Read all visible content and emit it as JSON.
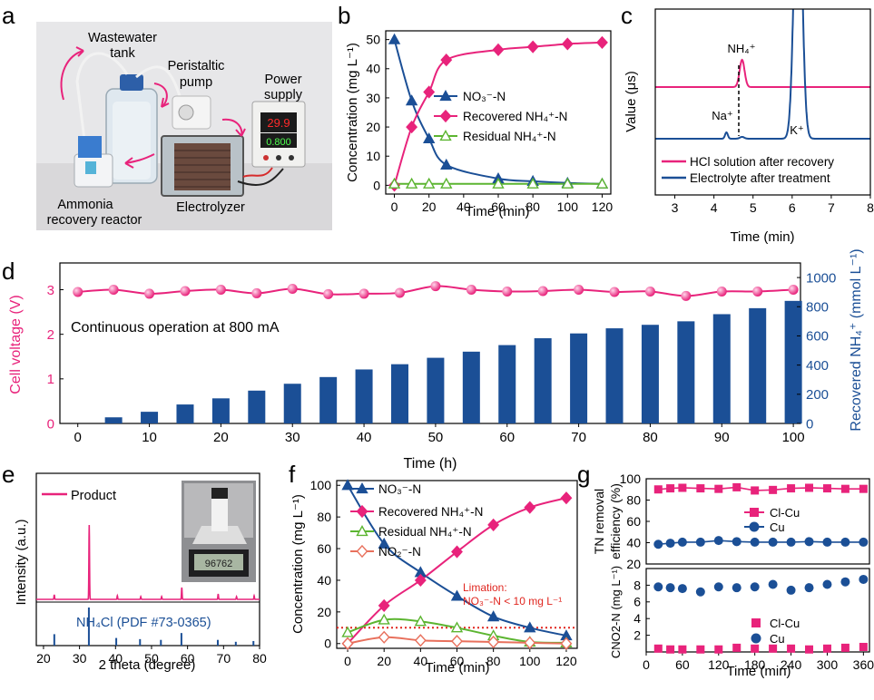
{
  "panel_labels": {
    "a": "a",
    "b": "b",
    "c": "c",
    "d": "d",
    "e": "e",
    "f": "f",
    "g": "g"
  },
  "photo_a": {
    "labels": {
      "tank": [
        "Wastewater",
        "tank"
      ],
      "pump": [
        "Peristaltic",
        "pump"
      ],
      "power": [
        "Power",
        "supply"
      ],
      "reactor": [
        "Ammonia",
        "recovery reactor"
      ],
      "electrolyzer": "Electrolyzer"
    },
    "display_top": "29.9",
    "display_bottom": "0.800"
  },
  "colors": {
    "pink": "#e8237b",
    "blue": "#1b4f96",
    "green": "#5cb531",
    "salmon": "#e8705c",
    "red": "#e0261f"
  },
  "chart_data": [
    {
      "id": "b",
      "type": "line",
      "xlabel": "Time (min)",
      "ylabel": "Concentration (mg L⁻¹)",
      "xlim": [
        -5,
        125
      ],
      "ylim": [
        -3,
        53
      ],
      "xticks": [
        0,
        20,
        40,
        60,
        80,
        100,
        120
      ],
      "yticks": [
        0,
        10,
        20,
        30,
        40,
        50
      ],
      "legend_position": "center-right",
      "series": [
        {
          "name": "NO₃⁻-N",
          "color": "#1b4f96",
          "marker": "triangle",
          "x": [
            0,
            10,
            20,
            30,
            60,
            80,
            100,
            120
          ],
          "y": [
            50,
            29,
            16,
            7,
            2.3,
            1.4,
            0.8,
            0.5
          ]
        },
        {
          "name": "Recovered NH₄⁺-N",
          "color": "#e8237b",
          "marker": "diamond",
          "x": [
            0,
            10,
            20,
            30,
            60,
            80,
            100,
            120
          ],
          "y": [
            0,
            20,
            32,
            43,
            46.5,
            47.5,
            48.5,
            49
          ]
        },
        {
          "name": "Residual NH₄⁺-N",
          "color": "#5cb531",
          "marker": "open-triangle",
          "x": [
            0,
            10,
            20,
            30,
            60,
            80,
            100,
            120
          ],
          "y": [
            0.5,
            0.5,
            0.5,
            0.5,
            0.5,
            0.5,
            0.5,
            0.5
          ]
        }
      ]
    },
    {
      "id": "c",
      "type": "line",
      "xlabel": "Time (min)",
      "ylabel": "Value (μs)",
      "xlim": [
        2.5,
        8
      ],
      "xticks": [
        3,
        4,
        5,
        6,
        7,
        8
      ],
      "legend_position": "bottom-left",
      "series": [
        {
          "name": "HCl solution after recovery",
          "color": "#e8237b"
        },
        {
          "name": "Electrolyte after treatment",
          "color": "#1b4f96"
        }
      ],
      "annotations": [
        "NH₄⁺",
        "Na⁺",
        "K⁺"
      ]
    },
    {
      "id": "d",
      "type": "bar",
      "title": "Continuous operation at 800 mA",
      "xlabel": "Time (h)",
      "ylabel_left": "Cell voltage (V)",
      "ylabel_right": "Recovered NH₄⁺ (mmol L⁻¹)",
      "xlim": [
        -2.5,
        101
      ],
      "xticks": [
        0,
        10,
        20,
        30,
        40,
        50,
        60,
        70,
        80,
        90,
        100
      ],
      "ylim_left": [
        0,
        3.6
      ],
      "yticks_left": [
        0,
        1,
        2,
        3
      ],
      "ylim_right": [
        0,
        1100
      ],
      "yticks_right": [
        0,
        200,
        400,
        600,
        800,
        1000
      ],
      "bars": {
        "name": "Recovered NH₄⁺",
        "color": "#1b4f96",
        "x": [
          5,
          10,
          15,
          20,
          25,
          30,
          35,
          40,
          45,
          50,
          55,
          60,
          65,
          70,
          75,
          80,
          85,
          90,
          95,
          100
        ],
        "values": [
          42,
          80,
          130,
          172,
          225,
          272,
          318,
          370,
          406,
          450,
          492,
          537,
          584,
          617,
          652,
          676,
          700,
          749,
          790,
          840
        ]
      },
      "line": {
        "name": "Cell voltage",
        "color": "#e8237b",
        "x": [
          0,
          5,
          10,
          15,
          20,
          25,
          30,
          35,
          40,
          45,
          50,
          55,
          60,
          65,
          70,
          75,
          80,
          85,
          90,
          95,
          100
        ],
        "values": [
          2.95,
          3.0,
          2.91,
          2.97,
          3.0,
          2.92,
          3.02,
          2.9,
          2.91,
          2.93,
          3.08,
          3.0,
          2.96,
          2.97,
          3.0,
          2.95,
          2.96,
          2.86,
          2.96,
          2.96,
          3.0
        ]
      }
    },
    {
      "id": "e",
      "type": "line",
      "xlabel": "2 theta (degree)",
      "ylabel": "Intensity (a.u.)",
      "xlim": [
        18,
        80
      ],
      "xticks": [
        20,
        30,
        40,
        50,
        60,
        70,
        80
      ],
      "legend": "Product",
      "reference_label": "NH₄Cl (PDF #73-0365)",
      "scale_reading": "96762",
      "product_peaks": [
        {
          "x": 23,
          "h": 0.05
        },
        {
          "x": 32.7,
          "h": 0.82
        },
        {
          "x": 40.5,
          "h": 0.04
        },
        {
          "x": 47,
          "h": 0.03
        },
        {
          "x": 52.8,
          "h": 0.03
        },
        {
          "x": 58.4,
          "h": 0.13
        },
        {
          "x": 68.5,
          "h": 0.06
        },
        {
          "x": 73.6,
          "h": 0.03
        },
        {
          "x": 78.5,
          "h": 0.04
        }
      ],
      "reference_peaks": [
        {
          "x": 23,
          "h": 0.3
        },
        {
          "x": 32.6,
          "h": 1.0
        },
        {
          "x": 40.2,
          "h": 0.2
        },
        {
          "x": 46.8,
          "h": 0.17
        },
        {
          "x": 52.6,
          "h": 0.15
        },
        {
          "x": 58.3,
          "h": 0.33
        },
        {
          "x": 68.4,
          "h": 0.15
        },
        {
          "x": 73.4,
          "h": 0.1
        },
        {
          "x": 78.3,
          "h": 0.12
        }
      ]
    },
    {
      "id": "f",
      "type": "line",
      "xlabel": "Time (min)",
      "ylabel": "Concentration (mg L⁻¹)",
      "xlim": [
        -6,
        126
      ],
      "ylim": [
        -3,
        103
      ],
      "xticks": [
        0,
        20,
        40,
        60,
        80,
        100,
        120
      ],
      "yticks": [
        0,
        20,
        40,
        60,
        80,
        100
      ],
      "legend_position": "top-left",
      "annotation": [
        "Limation:",
        "NO₃⁻-N < 10 mg L⁻¹"
      ],
      "limit_line": 10,
      "series": [
        {
          "name": "NO₃⁻-N",
          "color": "#1b4f96",
          "marker": "triangle",
          "x": [
            0,
            20,
            40,
            60,
            80,
            100,
            120
          ],
          "y": [
            100,
            63,
            45,
            30,
            17,
            10,
            5
          ]
        },
        {
          "name": "Recovered NH₄⁺-N",
          "color": "#e8237b",
          "marker": "diamond",
          "x": [
            0,
            20,
            40,
            60,
            80,
            100,
            120
          ],
          "y": [
            0,
            24,
            40,
            58,
            75,
            86,
            92
          ]
        },
        {
          "name": "Residual NH₄⁺-N",
          "color": "#5cb531",
          "marker": "open-triangle",
          "x": [
            0,
            20,
            40,
            60,
            80,
            100,
            120
          ],
          "y": [
            7,
            15,
            14,
            10,
            5,
            1,
            0.5
          ]
        },
        {
          "name": "NO₂⁻-N",
          "color": "#e8705c",
          "marker": "open-diamond",
          "x": [
            0,
            20,
            40,
            60,
            80,
            100,
            120
          ],
          "y": [
            0,
            4,
            2,
            1.5,
            1,
            0.5,
            0
          ]
        }
      ]
    },
    {
      "id": "g",
      "type": "scatter",
      "xlabel": "Time (min)",
      "xlim": [
        0,
        370
      ],
      "xticks": [
        0,
        60,
        120,
        180,
        240,
        300,
        360
      ],
      "top": {
        "ylabel": [
          "TN removal",
          "efficiency (%)"
        ],
        "ylim": [
          20,
          100
        ],
        "yticks": [
          20,
          40,
          60,
          80,
          100
        ],
        "legend_position": "middle-right",
        "series": [
          {
            "name": "Cl-Cu",
            "color": "#e8237b",
            "marker": "square",
            "x": [
              20,
              40,
              60,
              90,
              120,
              150,
              180,
              210,
              240,
              270,
              300,
              330,
              360
            ],
            "y": [
              90,
              91,
              91.5,
              91,
              90.5,
              92,
              89,
              89.5,
              91,
              91.5,
              91,
              90.5,
              90.5
            ]
          },
          {
            "name": "Cu",
            "color": "#1b4f96",
            "marker": "circle",
            "x": [
              20,
              40,
              60,
              90,
              120,
              150,
              180,
              210,
              240,
              270,
              300,
              330,
              360
            ],
            "y": [
              38.5,
              39.5,
              40.5,
              40.5,
              42,
              41,
              40.5,
              40.5,
              40.5,
              41,
              40.5,
              40.5,
              40.5
            ]
          }
        ]
      },
      "bottom": {
        "ylabel": "Cₙₒ₂₋ₙ (mg L⁻¹)",
        "ylabel_plain": "CNO2-N (mg L⁻¹)",
        "ylim": [
          0,
          10
        ],
        "yticks": [
          2,
          4,
          6,
          8
        ],
        "legend_position": "bottom-right",
        "series": [
          {
            "name": "Cl-Cu",
            "color": "#e8237b",
            "marker": "square",
            "x": [
              20,
              40,
              60,
              90,
              120,
              150,
              180,
              210,
              240,
              270,
              300,
              330,
              360
            ],
            "y": [
              0.4,
              0.3,
              0.3,
              0.3,
              0.3,
              0.5,
              0.4,
              0.4,
              0.4,
              0.3,
              0.4,
              0.5,
              0.6
            ]
          },
          {
            "name": "Cu",
            "color": "#1b4f96",
            "marker": "circle",
            "x": [
              20,
              40,
              60,
              90,
              120,
              150,
              180,
              210,
              240,
              270,
              300,
              330,
              360
            ],
            "y": [
              7.8,
              7.7,
              7.6,
              7.2,
              7.8,
              7.7,
              7.8,
              8.1,
              7.4,
              7.7,
              8.1,
              8.4,
              8.7
            ]
          }
        ]
      }
    }
  ]
}
